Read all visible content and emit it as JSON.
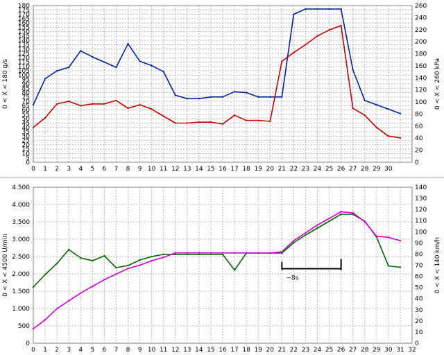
{
  "chart_data": [
    {
      "type": "line",
      "x": [
        0,
        1,
        2,
        3,
        4,
        5,
        6,
        7,
        8,
        9,
        10,
        11,
        12,
        13,
        14,
        15,
        16,
        17,
        18,
        19,
        20,
        21,
        22,
        23,
        24,
        25,
        26,
        27,
        28,
        29,
        30,
        31
      ],
      "xlim": [
        0,
        32
      ],
      "x_ticks": [
        0,
        1,
        2,
        3,
        4,
        5,
        6,
        7,
        8,
        9,
        10,
        11,
        12,
        13,
        14,
        15,
        16,
        17,
        18,
        19,
        20,
        21,
        22,
        23,
        24,
        25,
        26,
        27,
        28,
        29,
        30
      ],
      "ylim": [
        0,
        180
      ],
      "y_ticks": [
        0,
        5,
        10,
        15,
        20,
        25,
        30,
        35,
        40,
        45,
        50,
        55,
        60,
        65,
        70,
        75,
        80,
        85,
        90,
        95,
        100,
        105,
        110,
        115,
        120,
        125,
        130,
        135,
        140,
        145,
        150,
        155,
        160,
        165,
        170,
        175,
        180
      ],
      "y2lim": [
        0,
        260
      ],
      "y2_ticks": [
        0,
        20,
        40,
        60,
        80,
        100,
        120,
        140,
        160,
        180,
        200,
        220,
        240,
        260
      ],
      "ylabel": "0  < X <  180 g/s",
      "y2label": "0  < X <  260 kPa",
      "grid": true,
      "series": [
        {
          "color": "#00209a",
          "axis": "left",
          "values": [
            66,
            96,
            105,
            109,
            128,
            121,
            115,
            109,
            136,
            116,
            111,
            104,
            77,
            73,
            73,
            75,
            75,
            81,
            80,
            75,
            75,
            75,
            170,
            176,
            176,
            176,
            176,
            106,
            71,
            66,
            61,
            56
          ]
        },
        {
          "color": "#c00000",
          "axis": "left",
          "values": [
            40,
            51,
            67,
            70,
            65,
            67,
            67,
            71,
            62,
            66,
            61,
            53,
            45,
            45,
            46,
            46,
            44,
            54,
            48,
            48,
            47,
            116,
            126,
            135,
            145,
            152,
            157,
            62,
            54,
            40,
            30,
            28
          ]
        }
      ]
    },
    {
      "type": "line",
      "x": [
        0,
        1,
        2,
        3,
        4,
        5,
        6,
        7,
        8,
        9,
        10,
        11,
        12,
        13,
        14,
        15,
        16,
        17,
        18,
        19,
        20,
        21,
        22,
        23,
        24,
        25,
        26,
        27,
        28,
        29,
        30,
        31
      ],
      "xlim": [
        0,
        32
      ],
      "x_ticks": [
        0,
        1,
        2,
        3,
        4,
        5,
        6,
        7,
        8,
        9,
        10,
        11,
        12,
        13,
        14,
        15,
        16,
        17,
        18,
        19,
        20,
        21,
        22,
        23,
        24,
        25,
        26,
        27,
        28,
        29,
        30,
        31,
        32
      ],
      "ylim": [
        0,
        4500
      ],
      "y_ticks": [
        0,
        500,
        1000,
        1500,
        2000,
        2500,
        3000,
        3500,
        4000,
        4500
      ],
      "y_tick_labels": [
        "0",
        "500",
        "1.000",
        "1.500",
        "2.000",
        "2.500",
        "3.000",
        "3.500",
        "4.000",
        "4.500"
      ],
      "y2lim": [
        0,
        140
      ],
      "y2_ticks": [
        0,
        10,
        20,
        30,
        40,
        50,
        60,
        70,
        80,
        90,
        100,
        110,
        120,
        130,
        140
      ],
      "ylabel": "0  < X <  4500 U/min",
      "y2label": "0  < X <  140 km/h",
      "grid": true,
      "series": [
        {
          "color": "#006400",
          "axis": "left",
          "values": [
            1620,
            1980,
            2300,
            2700,
            2460,
            2380,
            2520,
            2180,
            2240,
            2400,
            2500,
            2560,
            2560,
            2560,
            2560,
            2560,
            2560,
            2110,
            2600,
            2600,
            2600,
            2600,
            2900,
            3120,
            3320,
            3520,
            3720,
            3720,
            3520,
            3060,
            2230,
            2190
          ]
        },
        {
          "color": "#cc00cc",
          "axis": "right",
          "values": [
            13,
            21,
            31,
            38,
            45,
            51,
            57,
            62,
            67,
            70,
            74,
            77,
            81,
            81,
            81,
            81,
            81,
            81,
            81,
            81,
            81,
            82,
            92,
            99,
            106,
            112,
            118,
            117,
            109,
            96,
            95,
            92
          ]
        }
      ],
      "annotation": {
        "label": "~8s",
        "x_start": 21,
        "x_end": 26,
        "y": 2150
      }
    }
  ]
}
